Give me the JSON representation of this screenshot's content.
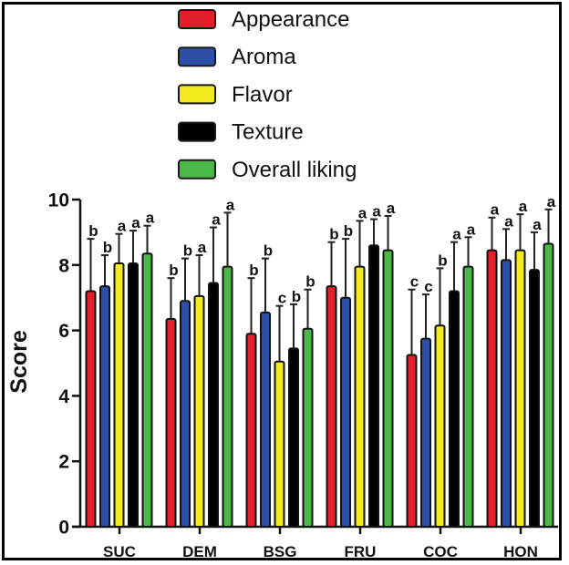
{
  "chart_data": {
    "type": "bar",
    "title": "",
    "xlabel": "",
    "ylabel": "Score",
    "ylim": [
      0,
      10
    ],
    "yticks": [
      0,
      2,
      4,
      6,
      8,
      10
    ],
    "grid": false,
    "legend_position": "top-center",
    "categories": [
      "SUC",
      "DEM",
      "BSG",
      "FRU",
      "COC",
      "HON"
    ],
    "series": [
      {
        "name": "Appearance",
        "color": "#e3202a",
        "values": [
          7.2,
          6.35,
          5.9,
          7.35,
          5.25,
          8.45
        ],
        "error_upper": [
          8.8,
          7.6,
          7.6,
          8.7,
          7.25,
          9.45
        ],
        "letters": [
          "b",
          "b",
          "b",
          "b",
          "c",
          "a"
        ]
      },
      {
        "name": "Aroma",
        "color": "#2d4fa8",
        "values": [
          7.35,
          6.9,
          6.55,
          7.0,
          5.75,
          8.15
        ],
        "error_upper": [
          8.3,
          8.2,
          8.2,
          8.8,
          7.1,
          9.1
        ],
        "letters": [
          "b",
          "b",
          "b",
          "b",
          "c",
          "a"
        ]
      },
      {
        "name": "Flavor",
        "color": "#f2ea1c",
        "values": [
          8.05,
          7.05,
          5.05,
          7.95,
          6.15,
          8.45
        ],
        "error_upper": [
          8.95,
          8.3,
          6.75,
          9.35,
          7.9,
          9.55
        ],
        "letters": [
          "a",
          "a",
          "c",
          "a",
          "b",
          "a"
        ]
      },
      {
        "name": "Texture",
        "color": "#000000",
        "values": [
          8.05,
          7.45,
          5.45,
          8.6,
          7.2,
          7.85
        ],
        "error_upper": [
          9.05,
          9.15,
          6.8,
          9.4,
          8.7,
          9.0
        ],
        "letters": [
          "a",
          "a",
          "b",
          "a",
          "a",
          "a"
        ]
      },
      {
        "name": "Overall liking",
        "color": "#4cb848",
        "values": [
          8.35,
          7.95,
          6.05,
          8.45,
          7.95,
          8.65
        ],
        "error_upper": [
          9.2,
          9.6,
          7.25,
          9.5,
          8.85,
          9.7
        ],
        "letters": [
          "a",
          "a",
          "b",
          "a",
          "a",
          "a"
        ]
      }
    ]
  }
}
